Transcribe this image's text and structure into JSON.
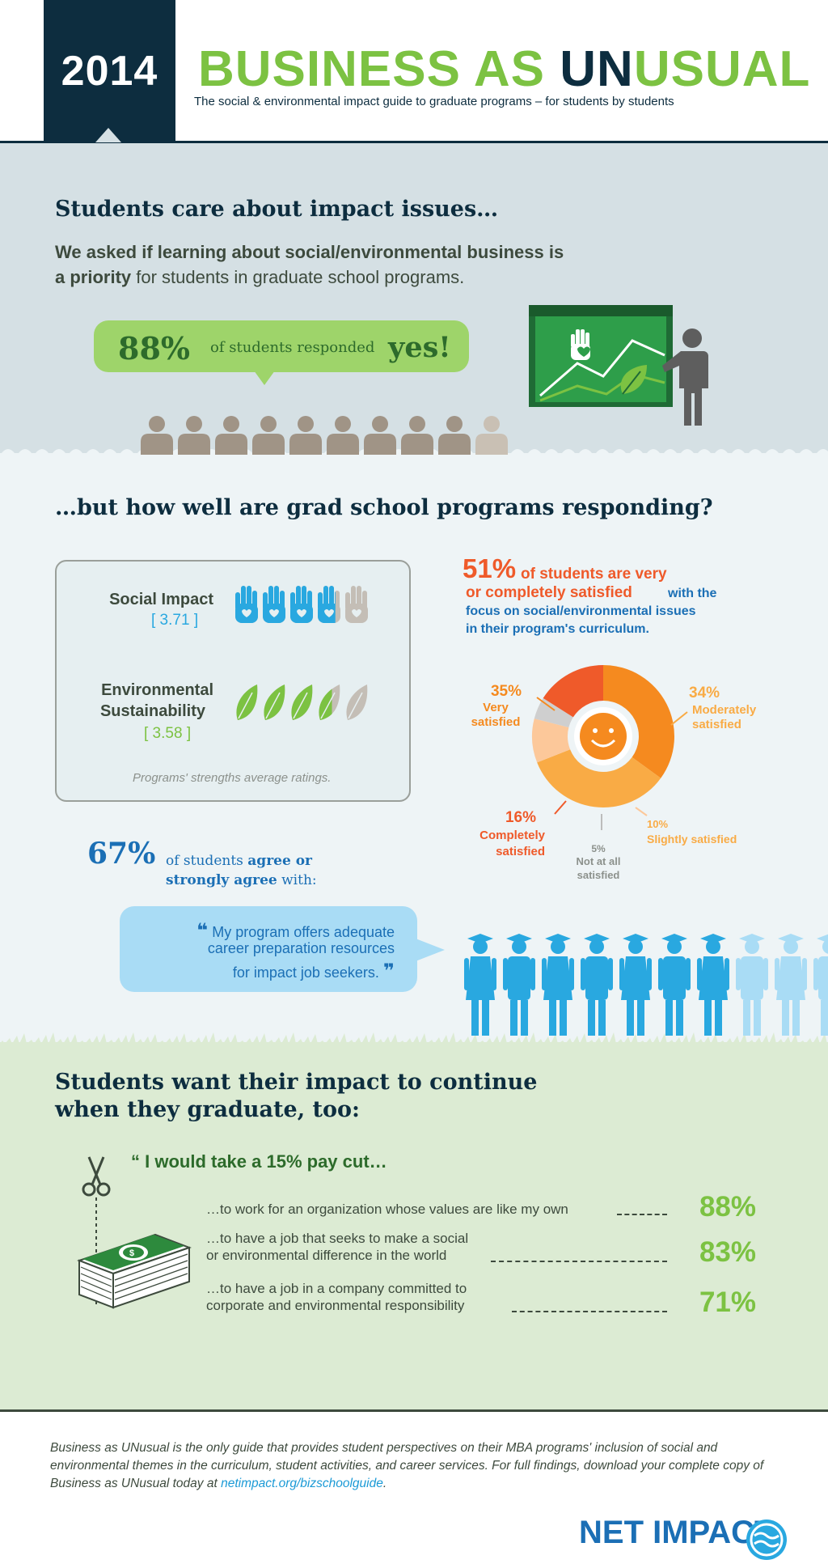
{
  "header": {
    "year": "2014",
    "title_part1": "BUSINESS AS ",
    "title_un": "UN",
    "title_part2": "USUAL",
    "subtitle": "The social & environmental impact guide to graduate programs – for students by students"
  },
  "section1": {
    "heading": "Students care about impact issues…",
    "intro_bold1": "We asked if learning about social/environmental business is",
    "intro_bold2": "a priority",
    "intro_rest": " for students in graduate school programs.",
    "stat_percent": "88%",
    "stat_text": "of students responded",
    "stat_answer": "yes!",
    "people_total": 10,
    "people_highlighted": 9
  },
  "section2": {
    "heading": "…but how well are grad school programs responding?",
    "ratings": [
      {
        "label_line1": "Social Impact",
        "label_line2": "",
        "value": "[ 3.71 ]",
        "score": 3.71,
        "icon": "hand-heart-icon"
      },
      {
        "label_line1": "Environmental",
        "label_line2": "Sustainability",
        "value": "[ 3.58 ]",
        "score": 3.58,
        "icon": "leaf-icon"
      }
    ],
    "ratings_caption": "Programs' strengths average ratings.",
    "satisfaction": {
      "percent": "51%",
      "line1": "of students are very",
      "line2_orange": "or completely satisfied",
      "line2_blue": "with the",
      "line3": "focus on social/environmental issues",
      "line4": "in their program's curriculum."
    },
    "agree": {
      "percent": "67%",
      "line1_pre": "of students ",
      "line1_bold": "agree or",
      "line2": "strongly agree",
      "line2_rest": " with:"
    },
    "quote": {
      "open": "❝",
      "line1": "My program offers adequate",
      "line2": "career preparation resources",
      "line3": "for impact job seekers.",
      "close": "❞"
    },
    "grads_total": 10,
    "grads_highlighted": 7
  },
  "chart_data": {
    "type": "pie",
    "categories": [
      "Very satisfied",
      "Moderately satisfied",
      "Slightly satisfied",
      "Not at all satisfied",
      "Completely satisfied"
    ],
    "values": [
      35,
      34,
      10,
      5,
      16
    ],
    "labels": [
      {
        "pct": "35%",
        "text1": "Very",
        "text2": "satisfied"
      },
      {
        "pct": "34%",
        "text1": "Moderately",
        "text2": "satisfied"
      },
      {
        "pct": "10%",
        "text1": "Slightly satisfied",
        "text2": ""
      },
      {
        "pct": "5%",
        "text1": "Not at all",
        "text2": "satisfied"
      },
      {
        "pct": "16%",
        "text1": "Completely",
        "text2": "satisfied"
      }
    ],
    "colors": [
      "#f58a1f",
      "#f9ab45",
      "#fcc89a",
      "#cfcfcf",
      "#ef5a2a"
    ]
  },
  "section3": {
    "heading_line1": "Students want their impact to continue",
    "heading_line2": "when they graduate, too:",
    "paycut_title_pre": "“ I would take a ",
    "paycut_title_hl": "15% pay cut…",
    "rows": [
      {
        "line1": "…to work for an organization whose values are like my own",
        "line2": "",
        "percent": "88%"
      },
      {
        "line1": "…to have a job that seeks to make a social",
        "line2": "or environmental difference in the world",
        "percent": "83%"
      },
      {
        "line1": "…to have a job in a company committed to",
        "line2": "corporate and environmental responsibility",
        "percent": "71%"
      }
    ]
  },
  "footer": {
    "text": "Business as UNusual is the only guide that provides student perspectives on their MBA programs' inclusion of social and environmental themes in the curriculum, student activities, and career services. For full findings, download your complete copy of Business as UNusual today at ",
    "link": "netimpact.org/bizschoolguide",
    "after": ".",
    "logo": "NET IMPACT"
  },
  "colors": {
    "navy": "#0d2d3f",
    "green": "#7cc242",
    "dark_green": "#2d6b2b",
    "blue": "#1b6fb5",
    "orange": "#ef5a2a"
  }
}
